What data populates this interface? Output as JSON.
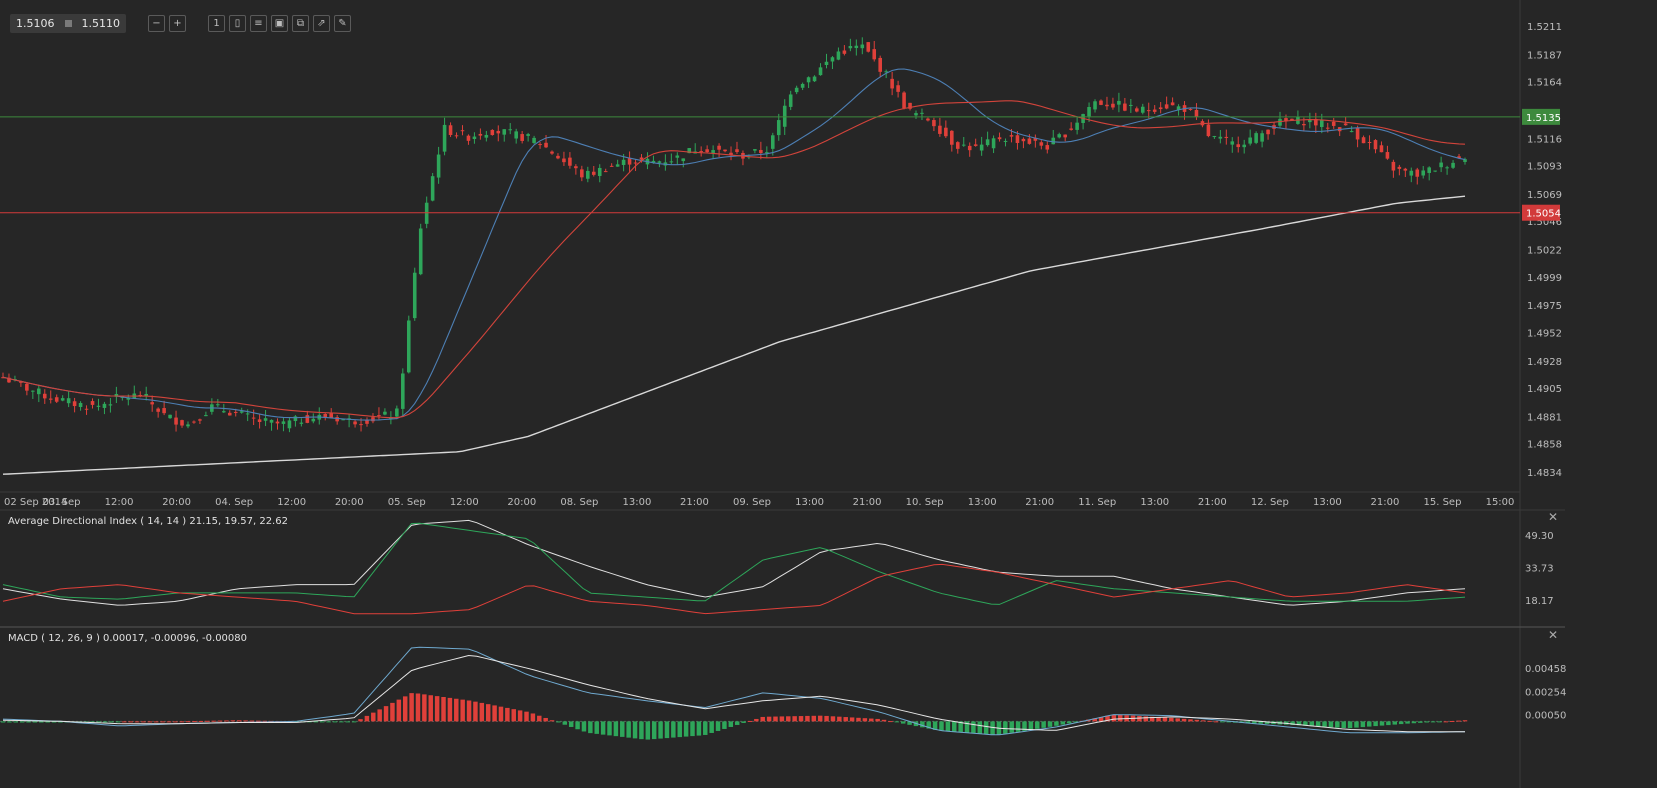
{
  "toolbar": {
    "bid": "1.5106",
    "ask": "1.5110",
    "icons": [
      "zoom-out-icon",
      "zoom-in-icon",
      "timeframe-icon",
      "chart-type-icon",
      "indicators-icon",
      "screenshot-icon",
      "copy-icon",
      "share-icon",
      "draw-icon"
    ],
    "timeframe_label": "1"
  },
  "colors": {
    "background": "#262626",
    "up_candle": "#2ea65a",
    "down_candle": "#e0403a",
    "ma_fast": "#4d7fb4",
    "ma_mid": "#d2443b",
    "ma_slow": "#d8d8d8",
    "resistance": "#3d8a3d",
    "support": "#d23a3a"
  },
  "panels": {
    "adx": {
      "title": "Average Directional Index ( 14, 14 ) 21.15, 19.57, 22.62"
    },
    "macd": {
      "title": "MACD ( 12, 26, 9 ) 0.00017, -0.00096, -0.00080"
    }
  },
  "chart_data": [
    {
      "type": "candlestick",
      "x_ticks": [
        "02 Sep 2014",
        "03. Sep",
        "12:00",
        "20:00",
        "04. Sep",
        "12:00",
        "20:00",
        "05. Sep",
        "12:00",
        "20:00",
        "08. Sep",
        "13:00",
        "21:00",
        "09. Sep",
        "13:00",
        "21:00",
        "10. Sep",
        "13:00",
        "21:00",
        "11. Sep",
        "13:00",
        "21:00",
        "12. Sep",
        "13:00",
        "21:00",
        "15. Sep",
        "15:00"
      ],
      "y_ticks": [
        "1.5211",
        "1.5187",
        "1.5164",
        "1.5116",
        "1.5093",
        "1.5069",
        "1.5046",
        "1.5022",
        "1.4999",
        "1.4975",
        "1.4952",
        "1.4928",
        "1.4905",
        "1.4881",
        "1.4858",
        "1.4834"
      ],
      "ylim": [
        1.4818,
        1.5227
      ],
      "horizontal_lines": [
        {
          "value": 1.5135,
          "label": "1.5135",
          "color": "#3d8a3d"
        },
        {
          "value": 1.5054,
          "label": "1.5054",
          "color": "#d23a3a"
        }
      ],
      "anchors": [
        1.4915,
        1.4906,
        1.4898,
        1.4893,
        1.489,
        1.4898,
        1.49,
        1.4882,
        1.4875,
        1.489,
        1.4885,
        1.4878,
        1.4875,
        1.488,
        1.4882,
        1.4878,
        1.488,
        1.4885,
        1.5042,
        1.5125,
        1.5118,
        1.5124,
        1.512,
        1.5115,
        1.51,
        1.5085,
        1.5092,
        1.5098,
        1.5097,
        1.51,
        1.511,
        1.5105,
        1.5102,
        1.5108,
        1.516,
        1.5172,
        1.519,
        1.5195,
        1.5172,
        1.514,
        1.5132,
        1.5112,
        1.5108,
        1.5118,
        1.5115,
        1.511,
        1.5125,
        1.5148,
        1.5145,
        1.514,
        1.5145,
        1.5142,
        1.5118,
        1.5112,
        1.5118,
        1.513,
        1.5132,
        1.5128,
        1.5125,
        1.511,
        1.509,
        1.5086,
        1.5094,
        1.5102
      ],
      "series": [
        {
          "name": "",
          "kind": "ma",
          "period": 20,
          "color": "#4d7fb4"
        },
        {
          "name": "",
          "kind": "ma",
          "period": 40,
          "color": "#d2443b"
        },
        {
          "name": "",
          "kind": "ma_anchored",
          "color": "#d8d8d8",
          "start": 1.4833,
          "points": [
            [
              0,
              1.4833
            ],
            [
              20,
              1.4852
            ],
            [
              23,
              1.4865
            ],
            [
              34,
              1.4945
            ],
            [
              45,
              1.5005
            ],
            [
              55,
              1.504
            ],
            [
              61,
              1.5062
            ],
            [
              64,
              1.5068
            ]
          ]
        }
      ]
    },
    {
      "type": "line",
      "name": "Average Directional Index",
      "y_ticks": [
        "49.30",
        "33.73",
        "18.17"
      ],
      "ylim": [
        8,
        60
      ],
      "series": [
        {
          "name": "",
          "color": "#e0e0e0",
          "anchors": [
            24,
            19,
            16,
            18,
            24,
            26,
            26,
            55,
            57,
            45,
            35,
            26,
            20,
            25,
            42,
            46,
            38,
            32,
            30,
            30,
            24,
            20,
            16,
            18,
            22,
            24
          ]
        },
        {
          "name": "",
          "color": "#2ea65a",
          "anchors": [
            26,
            20,
            19,
            22,
            22,
            22,
            20,
            56,
            52,
            48,
            22,
            20,
            18,
            38,
            44,
            32,
            22,
            16,
            28,
            24,
            22,
            20,
            18,
            18,
            18,
            20
          ]
        },
        {
          "name": "",
          "color": "#e0403a",
          "anchors": [
            18,
            24,
            26,
            22,
            20,
            18,
            12,
            12,
            14,
            26,
            18,
            16,
            12,
            14,
            16,
            30,
            36,
            32,
            26,
            20,
            24,
            28,
            20,
            22,
            26,
            22
          ]
        }
      ]
    },
    {
      "type": "bar+line",
      "name": "MACD",
      "y_ticks": [
        "0.00458",
        "0.00254",
        "0.00050"
      ],
      "ylim": [
        -0.0018,
        0.0078
      ],
      "histogram": [
        -0.0001,
        -0.0001,
        0.0,
        0.0,
        0.0001,
        0.0,
        -0.0001,
        0.0025,
        0.0018,
        0.0008,
        -0.001,
        -0.0016,
        -0.0012,
        0.0004,
        0.0005,
        0.0002,
        -0.0008,
        -0.0012,
        -0.0004,
        0.0006,
        0.0003,
        -0.0001,
        -0.0003,
        -0.0006,
        -0.0002,
        0.0001
      ],
      "series": [
        {
          "name": "",
          "color": "#6fa9cf",
          "anchors": [
            0.0002,
            0.0,
            -0.0004,
            -0.0002,
            -0.0001,
            0.0,
            0.0007,
            0.0065,
            0.0063,
            0.004,
            0.0025,
            0.0018,
            0.0012,
            0.0025,
            0.002,
            0.0008,
            -0.0008,
            -0.0012,
            -0.0005,
            0.0006,
            0.0005,
            0.0,
            -0.0005,
            -0.001,
            -0.001,
            -0.0009
          ]
        },
        {
          "name": "",
          "color": "#e6e6e6",
          "anchors": [
            0.0001,
            0.0,
            -0.0002,
            -0.0002,
            -0.0001,
            -0.0001,
            0.0003,
            0.0045,
            0.0058,
            0.0046,
            0.0032,
            0.002,
            0.0011,
            0.0018,
            0.0022,
            0.0014,
            0.0002,
            -0.0006,
            -0.0008,
            0.0002,
            0.0004,
            0.0002,
            -0.0002,
            -0.0007,
            -0.0009,
            -0.0009
          ]
        }
      ]
    }
  ]
}
